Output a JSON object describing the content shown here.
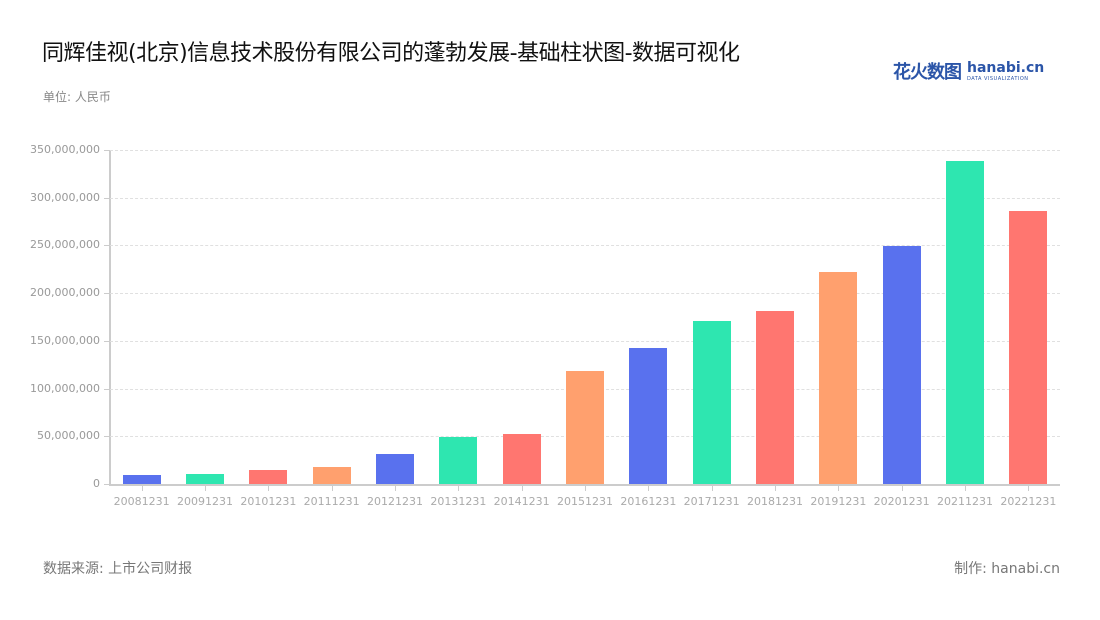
{
  "header": {
    "title": "同辉佳视(北京)信息技术股份有限公司的蓬勃发展-基础柱状图-数据可视化",
    "unit": "单位: 人民币"
  },
  "logo": {
    "cn": "花火数图",
    "en": "hanabi.cn",
    "tagline": "DATA VISUALIZATION"
  },
  "footer": {
    "source": "数据来源: 上市公司财报",
    "credit": "制作: hanabi.cn"
  },
  "chart_data": {
    "type": "bar",
    "title": "同辉佳视(北京)信息技术股份有限公司的蓬勃发展-基础柱状图-数据可视化",
    "xlabel": "",
    "ylabel": "单位: 人民币",
    "ylim": [
      0,
      350000000
    ],
    "yticks": [
      "0",
      "50,000,000",
      "100,000,000",
      "150,000,000",
      "200,000,000",
      "250,000,000",
      "300,000,000",
      "350,000,000"
    ],
    "grid": true,
    "legend": null,
    "categories": [
      "20081231",
      "20091231",
      "20101231",
      "20111231",
      "20121231",
      "20131231",
      "20141231",
      "20151231",
      "20161231",
      "20171231",
      "20181231",
      "20191231",
      "20201231",
      "20211231",
      "20221231"
    ],
    "values": [
      9400000,
      10000000,
      14700000,
      18300000,
      31000000,
      49000000,
      52000000,
      118000000,
      143000000,
      171000000,
      181000000,
      222000000,
      249000000,
      338000000,
      286000000
    ],
    "colors": [
      "#5971ee",
      "#2ee6b0",
      "#ff7670",
      "#ffa06e",
      "#5971ee",
      "#2ee6b0",
      "#ff7670",
      "#ffa06e",
      "#5971ee",
      "#2ee6b0",
      "#ff7670",
      "#ffa06e",
      "#5971ee",
      "#2ee6b0",
      "#ff7670"
    ]
  }
}
